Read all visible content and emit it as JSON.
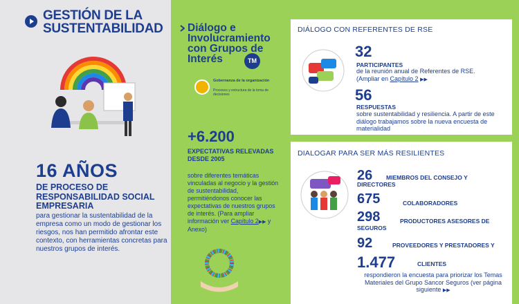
{
  "section": {
    "title_line1": "GESTIÓN DE LA",
    "title_line2": "SUSTENTABILIDAD",
    "big_number": "16 AÑOS",
    "subtitle": "DE PROCESO DE RESPONSABILIDAD SOCIAL EMPRESARIA",
    "body": "para gestionar la sustentabilidad de la empresa como un modo de gestionar los riesgos, nos han permitido afrontar este contexto, con herramientas concretas para nuestros grupos de interés."
  },
  "middle": {
    "title": "Diálogo e Involucramiento con Grupos de Interés",
    "tm_badge": "TM",
    "gov_title": "Gobernanza de la organización",
    "gov_sub": "Procesos y estructura de la toma de decisiones",
    "big_number": "+6.200",
    "subtitle": "EXPECTATIVAS RELEVADAS DESDE 2005",
    "body": "sobre diferentes temáticas vinculadas al negocio y la gestión de sustentabilidad, permitiéndonos conocer las expectativas de nuestros grupos de interés. (Para ampliar información ver ",
    "link1": "Capítulo 2",
    "link_connector": " y ",
    "link2": "Anexo",
    "body_end": ")"
  },
  "panel1": {
    "heading": "DIÁLOGO CON REFERENTES DE RSE",
    "n1": "32",
    "n1_label": "PARTICIPANTES",
    "n1_body": "de la reunión anual de Referentes de RSE. (Ampliar en ",
    "n1_link": "Capítulo 2",
    "n2": "56",
    "n2_label": "RESPUESTAS",
    "n2_body": "sobre sustentabilidad y resiliencia. A partir de este diálogo trabajamos sobre la nueva encuesta de materialidad"
  },
  "panel2": {
    "heading": "DIALOGAR PARA SER MÁS RESILIENTES",
    "rows": [
      {
        "number": "26",
        "label": "MIEMBROS DEL CONSEJO Y DIRECTORES"
      },
      {
        "number": "675",
        "label": "COLABORADORES"
      },
      {
        "number": "298",
        "label": "PRODUCTORES ASESORES DE SEGUROS"
      },
      {
        "number": "92",
        "label": "PROVEEDORES Y PRESTADORES Y"
      },
      {
        "number": "1.477",
        "label": "CLIENTES"
      }
    ],
    "footer": "respondieron la encuesta para priorizar los Temas Materiales del Grupo Sancor Seguros (ver página siguiente"
  },
  "colors": {
    "navy": "#1d3e8f",
    "green": "#9bd157",
    "grey": "#e6e6e8",
    "yellow": "#f0b400"
  }
}
